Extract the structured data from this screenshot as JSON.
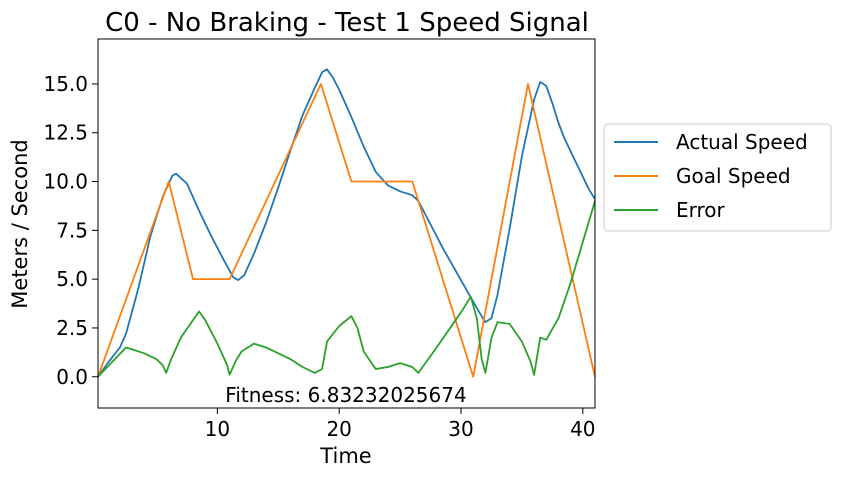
{
  "chart_data": {
    "type": "line",
    "title": "C0 - No Braking - Test 1  Speed Signal",
    "xlabel": "Time",
    "ylabel": "Meters / Second",
    "xlim": [
      0.2,
      41
    ],
    "ylim": [
      -1.6,
      17.3
    ],
    "x_ticks": [
      10,
      20,
      30,
      40
    ],
    "y_ticks": [
      0.0,
      2.5,
      5.0,
      7.5,
      10.0,
      12.5,
      15.0
    ],
    "x_tick_labels": [
      "10",
      "20",
      "30",
      "40"
    ],
    "y_tick_labels": [
      "0.0",
      "2.5",
      "5.0",
      "7.5",
      "10.0",
      "12.5",
      "15.0"
    ],
    "grid": false,
    "legend_position": "outside-right",
    "annotation": "Fitness: 6.83232025674",
    "series": [
      {
        "name": "Actual Speed",
        "color": "#1f77b4",
        "points": [
          [
            0.2,
            0
          ],
          [
            1,
            0.7
          ],
          [
            2,
            1.5
          ],
          [
            2.5,
            2.2
          ],
          [
            3.5,
            4.5
          ],
          [
            4.5,
            7.2
          ],
          [
            5.5,
            9.2
          ],
          [
            6,
            9.9
          ],
          [
            6.3,
            10.3
          ],
          [
            6.6,
            10.4
          ],
          [
            7.5,
            9.9
          ],
          [
            8.5,
            8.5
          ],
          [
            9.5,
            7.2
          ],
          [
            10.5,
            6.0
          ],
          [
            11.3,
            5.1
          ],
          [
            11.7,
            4.95
          ],
          [
            12.2,
            5.2
          ],
          [
            13,
            6.3
          ],
          [
            14,
            7.9
          ],
          [
            15,
            9.7
          ],
          [
            16,
            11.6
          ],
          [
            17,
            13.4
          ],
          [
            18,
            14.8
          ],
          [
            18.6,
            15.6
          ],
          [
            19,
            15.75
          ],
          [
            19.5,
            15.3
          ],
          [
            20,
            14.7
          ],
          [
            20.5,
            14.0
          ],
          [
            21,
            13.3
          ],
          [
            22,
            11.8
          ],
          [
            23,
            10.5
          ],
          [
            24,
            9.8
          ],
          [
            25,
            9.5
          ],
          [
            26,
            9.3
          ],
          [
            26.5,
            9.0
          ],
          [
            27.5,
            7.8
          ],
          [
            28.5,
            6.6
          ],
          [
            29.5,
            5.5
          ],
          [
            30.5,
            4.4
          ],
          [
            31.5,
            3.3
          ],
          [
            32,
            2.8
          ],
          [
            32.5,
            3.0
          ],
          [
            33,
            4.2
          ],
          [
            34,
            7.6
          ],
          [
            35,
            11.3
          ],
          [
            36,
            14.2
          ],
          [
            36.5,
            15.1
          ],
          [
            37,
            14.9
          ],
          [
            37.5,
            14.0
          ],
          [
            38,
            13.0
          ],
          [
            38.5,
            12.2
          ],
          [
            39.5,
            10.9
          ],
          [
            40.5,
            9.6
          ],
          [
            41,
            9.1
          ]
        ]
      },
      {
        "name": "Goal Speed",
        "color": "#ff7f0e",
        "points": [
          [
            0.2,
            0
          ],
          [
            6,
            10
          ],
          [
            8,
            5
          ],
          [
            11,
            5
          ],
          [
            18.5,
            15
          ],
          [
            21,
            10
          ],
          [
            26,
            10
          ],
          [
            31,
            0
          ],
          [
            35.5,
            15
          ],
          [
            41,
            0
          ]
        ]
      },
      {
        "name": "Error",
        "color": "#2ca02c",
        "points": [
          [
            0.2,
            0
          ],
          [
            2.5,
            1.5
          ],
          [
            3,
            1.4
          ],
          [
            4,
            1.2
          ],
          [
            5,
            0.9
          ],
          [
            5.5,
            0.6
          ],
          [
            5.8,
            0.2
          ],
          [
            6.2,
            0.9
          ],
          [
            7,
            2.0
          ],
          [
            8,
            2.9
          ],
          [
            8.5,
            3.35
          ],
          [
            9,
            2.9
          ],
          [
            10,
            1.7
          ],
          [
            10.8,
            0.6
          ],
          [
            11,
            0.1
          ],
          [
            11.5,
            0.8
          ],
          [
            12,
            1.3
          ],
          [
            13,
            1.7
          ],
          [
            14,
            1.5
          ],
          [
            15,
            1.2
          ],
          [
            16,
            0.9
          ],
          [
            17,
            0.5
          ],
          [
            18,
            0.2
          ],
          [
            18.6,
            0.4
          ],
          [
            19,
            1.8
          ],
          [
            20,
            2.6
          ],
          [
            21,
            3.1
          ],
          [
            21.5,
            2.5
          ],
          [
            22,
            1.3
          ],
          [
            23,
            0.4
          ],
          [
            24,
            0.5
          ],
          [
            25,
            0.7
          ],
          [
            26,
            0.5
          ],
          [
            26.5,
            0.2
          ],
          [
            28,
            1.5
          ],
          [
            30,
            3.3
          ],
          [
            30.8,
            4.1
          ],
          [
            31.3,
            3.0
          ],
          [
            31.7,
            0.9
          ],
          [
            32,
            0.2
          ],
          [
            32.5,
            2.0
          ],
          [
            33,
            2.8
          ],
          [
            34,
            2.7
          ],
          [
            35,
            1.8
          ],
          [
            35.7,
            0.8
          ],
          [
            36,
            0.1
          ],
          [
            36.5,
            2.0
          ],
          [
            37,
            1.9
          ],
          [
            38,
            3.0
          ],
          [
            39,
            4.8
          ],
          [
            40,
            6.9
          ],
          [
            41,
            9.0
          ]
        ]
      }
    ]
  }
}
